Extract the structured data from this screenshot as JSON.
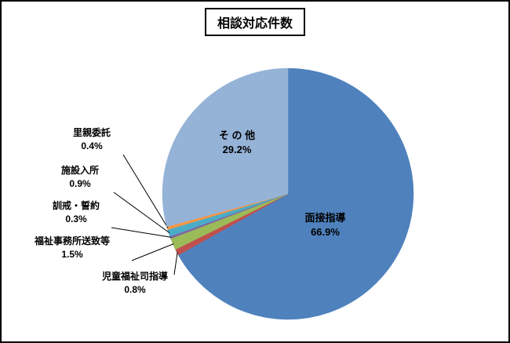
{
  "title": "相談対応件数",
  "chart_data": {
    "type": "pie",
    "title": "相談対応件数",
    "unit": "%",
    "start_angle_deg": 0,
    "direction": "clockwise",
    "legend": "none",
    "slices": [
      {
        "label": "面接指導",
        "value": 66.9,
        "pct_label": "66.9%",
        "color": "#4F81BD",
        "label_placement": "inside"
      },
      {
        "label": "児童福祉司指導",
        "value": 0.8,
        "pct_label": "0.8%",
        "color": "#C0504D",
        "label_placement": "outside"
      },
      {
        "label": "福祉事務所送致等",
        "value": 1.5,
        "pct_label": "1.5%",
        "color": "#9BBB59",
        "label_placement": "outside"
      },
      {
        "label": "訓戒・誓約",
        "value": 0.3,
        "pct_label": "0.3%",
        "color": "#8064A2",
        "label_placement": "outside"
      },
      {
        "label": "施設入所",
        "value": 0.9,
        "pct_label": "0.9%",
        "color": "#4BACC6",
        "label_placement": "outside"
      },
      {
        "label": "里親委託",
        "value": 0.4,
        "pct_label": "0.4%",
        "color": "#F79646",
        "label_placement": "outside"
      },
      {
        "label": "そ の 他",
        "value": 29.2,
        "pct_label": "29.2%",
        "color": "#95B3D7",
        "label_placement": "inside"
      }
    ]
  }
}
